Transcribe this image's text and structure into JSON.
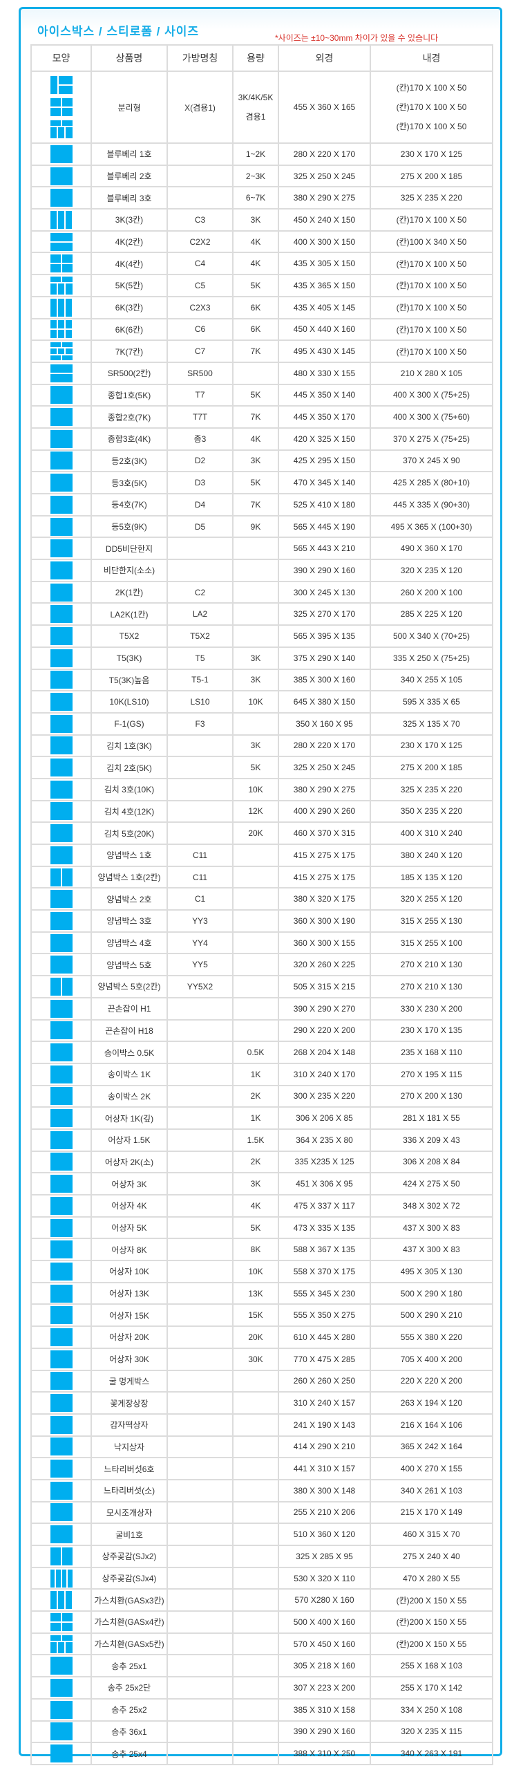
{
  "header": {
    "title": "아이스박스 / 스티로폼 / 사이즈",
    "note": "*사이즈는 ±10~30mm 차이가 있을 수 있습니다"
  },
  "colors": {
    "accent": "#00AEEF",
    "note": "#D8322B",
    "border": "#DCDCDC"
  },
  "table": {
    "columns": [
      "모양",
      "상품명",
      "가방명칭",
      "용량",
      "외경",
      "내경"
    ],
    "first_row": {
      "shapes": [
        "split-1-2",
        "grid-4",
        "grid-5"
      ],
      "name": "분리형",
      "code": "X(겸용1)",
      "capacity": [
        "3K/4K/5K",
        "겸용1"
      ],
      "outer": "455 X 360 X 165",
      "inner": [
        "(칸)170 X 100 X 50",
        "(칸)170 X 100 X 50",
        "(칸)170 X 100 X 50"
      ]
    },
    "rows": [
      [
        "single",
        "블루베리 1호",
        "",
        "1~2K",
        "280 X 220 X 170",
        "230 X 170 X 125"
      ],
      [
        "single",
        "블루베리 2호",
        "",
        "2~3K",
        "325 X 250 X 245",
        "275 X 200 X 185"
      ],
      [
        "single",
        "블루베리 3호",
        "",
        "6~7K",
        "380 X 290 X 275",
        "325 X 235 X 220"
      ],
      [
        "cols-3",
        "3K(3칸)",
        "C3",
        "3K",
        "450 X 240 X 150",
        "(칸)170 X 100 X 50"
      ],
      [
        "rows-2",
        "4K(2칸)",
        "C2X2",
        "4K",
        "400 X 300 X 150",
        "(칸)100 X 340 X 50"
      ],
      [
        "grid-4",
        "4K(4칸)",
        "C4",
        "4K",
        "435 X 305 X 150",
        "(칸)170 X 100 X 50"
      ],
      [
        "grid-5",
        "5K(5칸)",
        "C5",
        "5K",
        "435 X 365 X 150",
        "(칸)170 X 100 X 50"
      ],
      [
        "cols-3",
        "6K(3칸)",
        "C2X3",
        "6K",
        "435 X 405 X 145",
        "(칸)170 X 100 X 50"
      ],
      [
        "grid-6",
        "6K(6칸)",
        "C6",
        "6K",
        "450 X 440 X 160",
        "(칸)170 X 100 X 50"
      ],
      [
        "grid-7",
        "7K(7칸)",
        "C7",
        "7K",
        "495 X 430 X 145",
        "(칸)170 X 100 X 50"
      ],
      [
        "rows-2",
        "SR500(2칸)",
        "SR500",
        "",
        "480 X 330 X 155",
        "210 X 280 X 105"
      ],
      [
        "single",
        "종합1호(5K)",
        "T7",
        "5K",
        "445 X 350 X 140",
        "400 X 300 X (75+25)"
      ],
      [
        "single",
        "종합2호(7K)",
        "T7T",
        "7K",
        "445 X 350 X 170",
        "400 X 300 X (75+60)"
      ],
      [
        "single",
        "종합3호(4K)",
        "종3",
        "4K",
        "420 X 325 X 150",
        "370 X 275 X (75+25)"
      ],
      [
        "single",
        "등2호(3K)",
        "D2",
        "3K",
        "425 X 295 X 150",
        "370 X 245 X 90"
      ],
      [
        "single",
        "등3호(5K)",
        "D3",
        "5K",
        "470 X 345 X 140",
        "425 X 285 X (80+10)"
      ],
      [
        "single",
        "등4호(7K)",
        "D4",
        "7K",
        "525 X 410 X 180",
        "445 X 335 X (90+30)"
      ],
      [
        "single",
        "등5호(9K)",
        "D5",
        "9K",
        "565 X 445 X 190",
        "495 X 365 X (100+30)"
      ],
      [
        "single",
        "DD5비단한지",
        "",
        "",
        "565 X 443 X 210",
        "490 X 360 X 170"
      ],
      [
        "single",
        "비단한지(소소)",
        "",
        "",
        "390 X 290 X 160",
        "320 X 235 X 120"
      ],
      [
        "single",
        "2K(1칸)",
        "C2",
        "",
        "300 X 245 X 130",
        "260 X 200 X 100"
      ],
      [
        "single",
        "LA2K(1칸)",
        "LA2",
        "",
        "325 X 270 X 170",
        "285 X 225 X 120"
      ],
      [
        "single",
        "T5X2",
        "T5X2",
        "",
        "565 X 395 X 135",
        "500 X 340 X (70+25)"
      ],
      [
        "single",
        "T5(3K)",
        "T5",
        "3K",
        "375 X 290 X 140",
        "335 X 250 X (75+25)"
      ],
      [
        "single",
        "T5(3K)높음",
        "T5-1",
        "3K",
        "385 X 300 X 160",
        "340 X 255 X 105"
      ],
      [
        "single",
        "10K(LS10)",
        "LS10",
        "10K",
        "645 X 380 X 150",
        "595 X 335 X 65"
      ],
      [
        "single",
        "F-1(GS)",
        "F3",
        "",
        "350 X 160 X 95",
        "325 X 135 X 70"
      ],
      [
        "single",
        "김치 1호(3K)",
        "",
        "3K",
        "280 X 220 X 170",
        "230 X 170 X 125"
      ],
      [
        "single",
        "김치 2호(5K)",
        "",
        "5K",
        "325 X 250 X 245",
        "275 X 200 X 185"
      ],
      [
        "single",
        "김치 3호(10K)",
        "",
        "10K",
        "380 X 290 X 275",
        "325 X 235 X 220"
      ],
      [
        "single",
        "김치 4호(12K)",
        "",
        "12K",
        "400 X 290 X 260",
        "350 X 235 X 220"
      ],
      [
        "single",
        "김치 5호(20K)",
        "",
        "20K",
        "460 X 370 X 315",
        "400 X 310 X 240"
      ],
      [
        "single",
        "양념박스 1호",
        "C11",
        "",
        "415 X 275 X 175",
        "380 X 240 X 120"
      ],
      [
        "cols-2",
        "양념박스 1호(2칸)",
        "C11",
        "",
        "415 X 275 X 175",
        "185 X 135 X 120"
      ],
      [
        "single",
        "양념박스 2호",
        "C1",
        "",
        "380 X 320 X 175",
        "320 X 255 X 120"
      ],
      [
        "single",
        "양념박스 3호",
        "YY3",
        "",
        "360 X 300 X 190",
        "315 X 255 X 130"
      ],
      [
        "single",
        "양념박스 4호",
        "YY4",
        "",
        "360 X 300 X 155",
        "315 X 255 X 100"
      ],
      [
        "single",
        "양념박스 5호",
        "YY5",
        "",
        "320 X 260 X 225",
        "270 X 210 X 130"
      ],
      [
        "cols-2",
        "양념박스 5호(2칸)",
        "YY5X2",
        "",
        "505 X 315 X 215",
        "270 X 210 X 130"
      ],
      [
        "single",
        "끈손잡이 H1",
        "",
        "",
        "390 X 290 X 270",
        "330 X 230 X 200"
      ],
      [
        "single",
        "끈손잡이 H18",
        "",
        "",
        "290 X 220 X 200",
        "230 X 170 X 135"
      ],
      [
        "single",
        "송이박스 0.5K",
        "",
        "0.5K",
        "268  X 204 X 148",
        "235 X 168 X 110"
      ],
      [
        "single",
        "송이박스 1K",
        "",
        "1K",
        "310 X 240 X 170",
        "270 X 195 X 115"
      ],
      [
        "single",
        "송이박스 2K",
        "",
        "2K",
        "300 X 235 X 220",
        "270 X 200 X 130"
      ],
      [
        "single",
        "어상자 1K(깊)",
        "",
        "1K",
        "306 X 206 X 85",
        "281 X 181 X 55"
      ],
      [
        "single",
        "어상자 1.5K",
        "",
        "1.5K",
        "364 X 235 X 80",
        "336 X 209 X 43"
      ],
      [
        "single",
        "어상자 2K(소)",
        "",
        "2K",
        "335 X235 X 125",
        "306 X 208 X 84"
      ],
      [
        "single",
        "어상자 3K",
        "",
        "3K",
        "451 X 306 X 95",
        "424 X 275 X 50"
      ],
      [
        "single",
        "어상자 4K",
        "",
        "4K",
        "475 X 337 X 117",
        "348 X 302 X 72"
      ],
      [
        "single",
        "어상자 5K",
        "",
        "5K",
        "473 X 335 X 135",
        "437 X 300 X 83"
      ],
      [
        "single",
        "어상자 8K",
        "",
        "8K",
        "588 X 367 X 135",
        "437 X 300 X 83"
      ],
      [
        "single",
        "어상자 10K",
        "",
        "10K",
        "558 X 370 X 175",
        "495 X 305 X 130"
      ],
      [
        "single",
        "어상자 13K",
        "",
        "13K",
        "555 X 345 X 230",
        "500 X 290 X 180"
      ],
      [
        "single",
        "어상자 15K",
        "",
        "15K",
        "555 X 350 X 275",
        "500 X 290 X 210"
      ],
      [
        "single",
        "어상자 20K",
        "",
        "20K",
        "610 X 445 X 280",
        "555 X 380 X 220"
      ],
      [
        "single",
        "어상자 30K",
        "",
        "30K",
        "770 X 475 X 285",
        "705 X 400 X 200"
      ],
      [
        "single",
        "굴 멍게박스",
        "",
        "",
        "260 X 260 X 250",
        "220 X 220 X 200"
      ],
      [
        "single",
        "꽃게장상장",
        "",
        "",
        "310 X 240 X 157",
        "263 X 194 X 120"
      ],
      [
        "single",
        "감자떡상자",
        "",
        "",
        "241 X 190 X 143",
        "216 X 164 X 106"
      ],
      [
        "single",
        "낙지상자",
        "",
        "",
        "414 X 290 X 210",
        "365 X 242 X 164"
      ],
      [
        "single",
        "느타리버섯6호",
        "",
        "",
        "441 X 310 X 157",
        "400 X 270 X 155"
      ],
      [
        "single",
        "느타리버섯(소)",
        "",
        "",
        "380 X 300 X 148",
        "340 X 261 X 103"
      ],
      [
        "single",
        "모시조개상자",
        "",
        "",
        "255 X 210 X 206",
        "215 X 170 X 149"
      ],
      [
        "single",
        "굴비1호",
        "",
        "",
        "510 X 360 X 120",
        "460 X 315 X 70"
      ],
      [
        "cols-2",
        "상주곶감(SJx2)",
        "",
        "",
        "325 X 285 X 95",
        "275 X 240 X 40"
      ],
      [
        "cols-4",
        "상주곶감(SJx4)",
        "",
        "",
        "530 X 320 X 110",
        "470 X 280 X 55"
      ],
      [
        "cols-3",
        "가스치환(GASx3칸)",
        "",
        "",
        "570 X280 X 160",
        "(칸)200 X 150 X 55"
      ],
      [
        "grid-4",
        "가스치환(GASx4칸)",
        "",
        "",
        "500 X 400 X 160",
        "(칸)200 X 150 X 55"
      ],
      [
        "grid-5",
        "가스치환(GASx5칸)",
        "",
        "",
        "570 X 450 X 160",
        "(칸)200 X 150 X 55"
      ],
      [
        "single",
        "송추 25x1",
        "",
        "",
        "305 X 218 X 160",
        "255 X 168 X 103"
      ],
      [
        "single",
        "송추 25x2단",
        "",
        "",
        "307 X 223 X 200",
        "255 X 170 X 142"
      ],
      [
        "single",
        "송추 25x2",
        "",
        "",
        "385 X 310 X 158",
        "334 X 250 X 108"
      ],
      [
        "single",
        "송추 36x1",
        "",
        "",
        "390 X 290 X 160",
        "320 X 235 X 115"
      ],
      [
        "single",
        "송추 25x4",
        "",
        "",
        "388 X 310 X 250",
        "340 X 263 X 191"
      ]
    ]
  }
}
